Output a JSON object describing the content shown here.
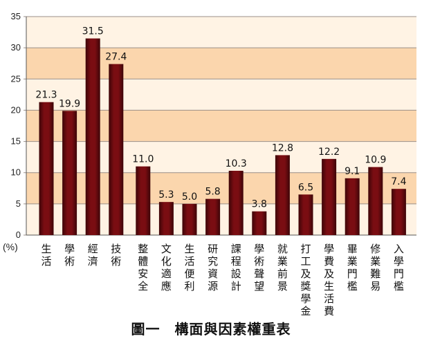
{
  "caption": "圖一　構面與因素權重表",
  "chart_data": {
    "type": "bar",
    "unit_label": "(%)",
    "categories": [
      "生活",
      "學術",
      "經濟",
      "技術",
      "整體安全",
      "文化適應",
      "生活便利",
      "研究資源",
      "課程設計",
      "學術聲望",
      "就業前景",
      "打工及獎學金",
      "學費及生活費",
      "畢業門檻",
      "修業難易",
      "入學門檻"
    ],
    "values": [
      21.3,
      19.9,
      31.5,
      27.4,
      11.0,
      5.3,
      5.0,
      5.8,
      10.3,
      3.8,
      12.8,
      6.5,
      12.2,
      9.1,
      10.9,
      7.4
    ],
    "value_labels": [
      "21.3",
      "19.9",
      "31.5",
      "27.4",
      "11.0",
      "5.3",
      "5.0",
      "5.8",
      "10.3",
      "3.8",
      "12.8",
      "6.5",
      "12.2",
      "9.1",
      "10.9",
      "7.4"
    ],
    "ylim": [
      0,
      35
    ],
    "yticks": [
      "0",
      "5",
      "10",
      "15",
      "20",
      "25",
      "30",
      "35"
    ],
    "grid": true,
    "colors": {
      "bar": "#7a0d12",
      "bar_dark": "#3d0508",
      "band_light": "#fff3e4",
      "band_dark": "#fbd6ad"
    }
  }
}
